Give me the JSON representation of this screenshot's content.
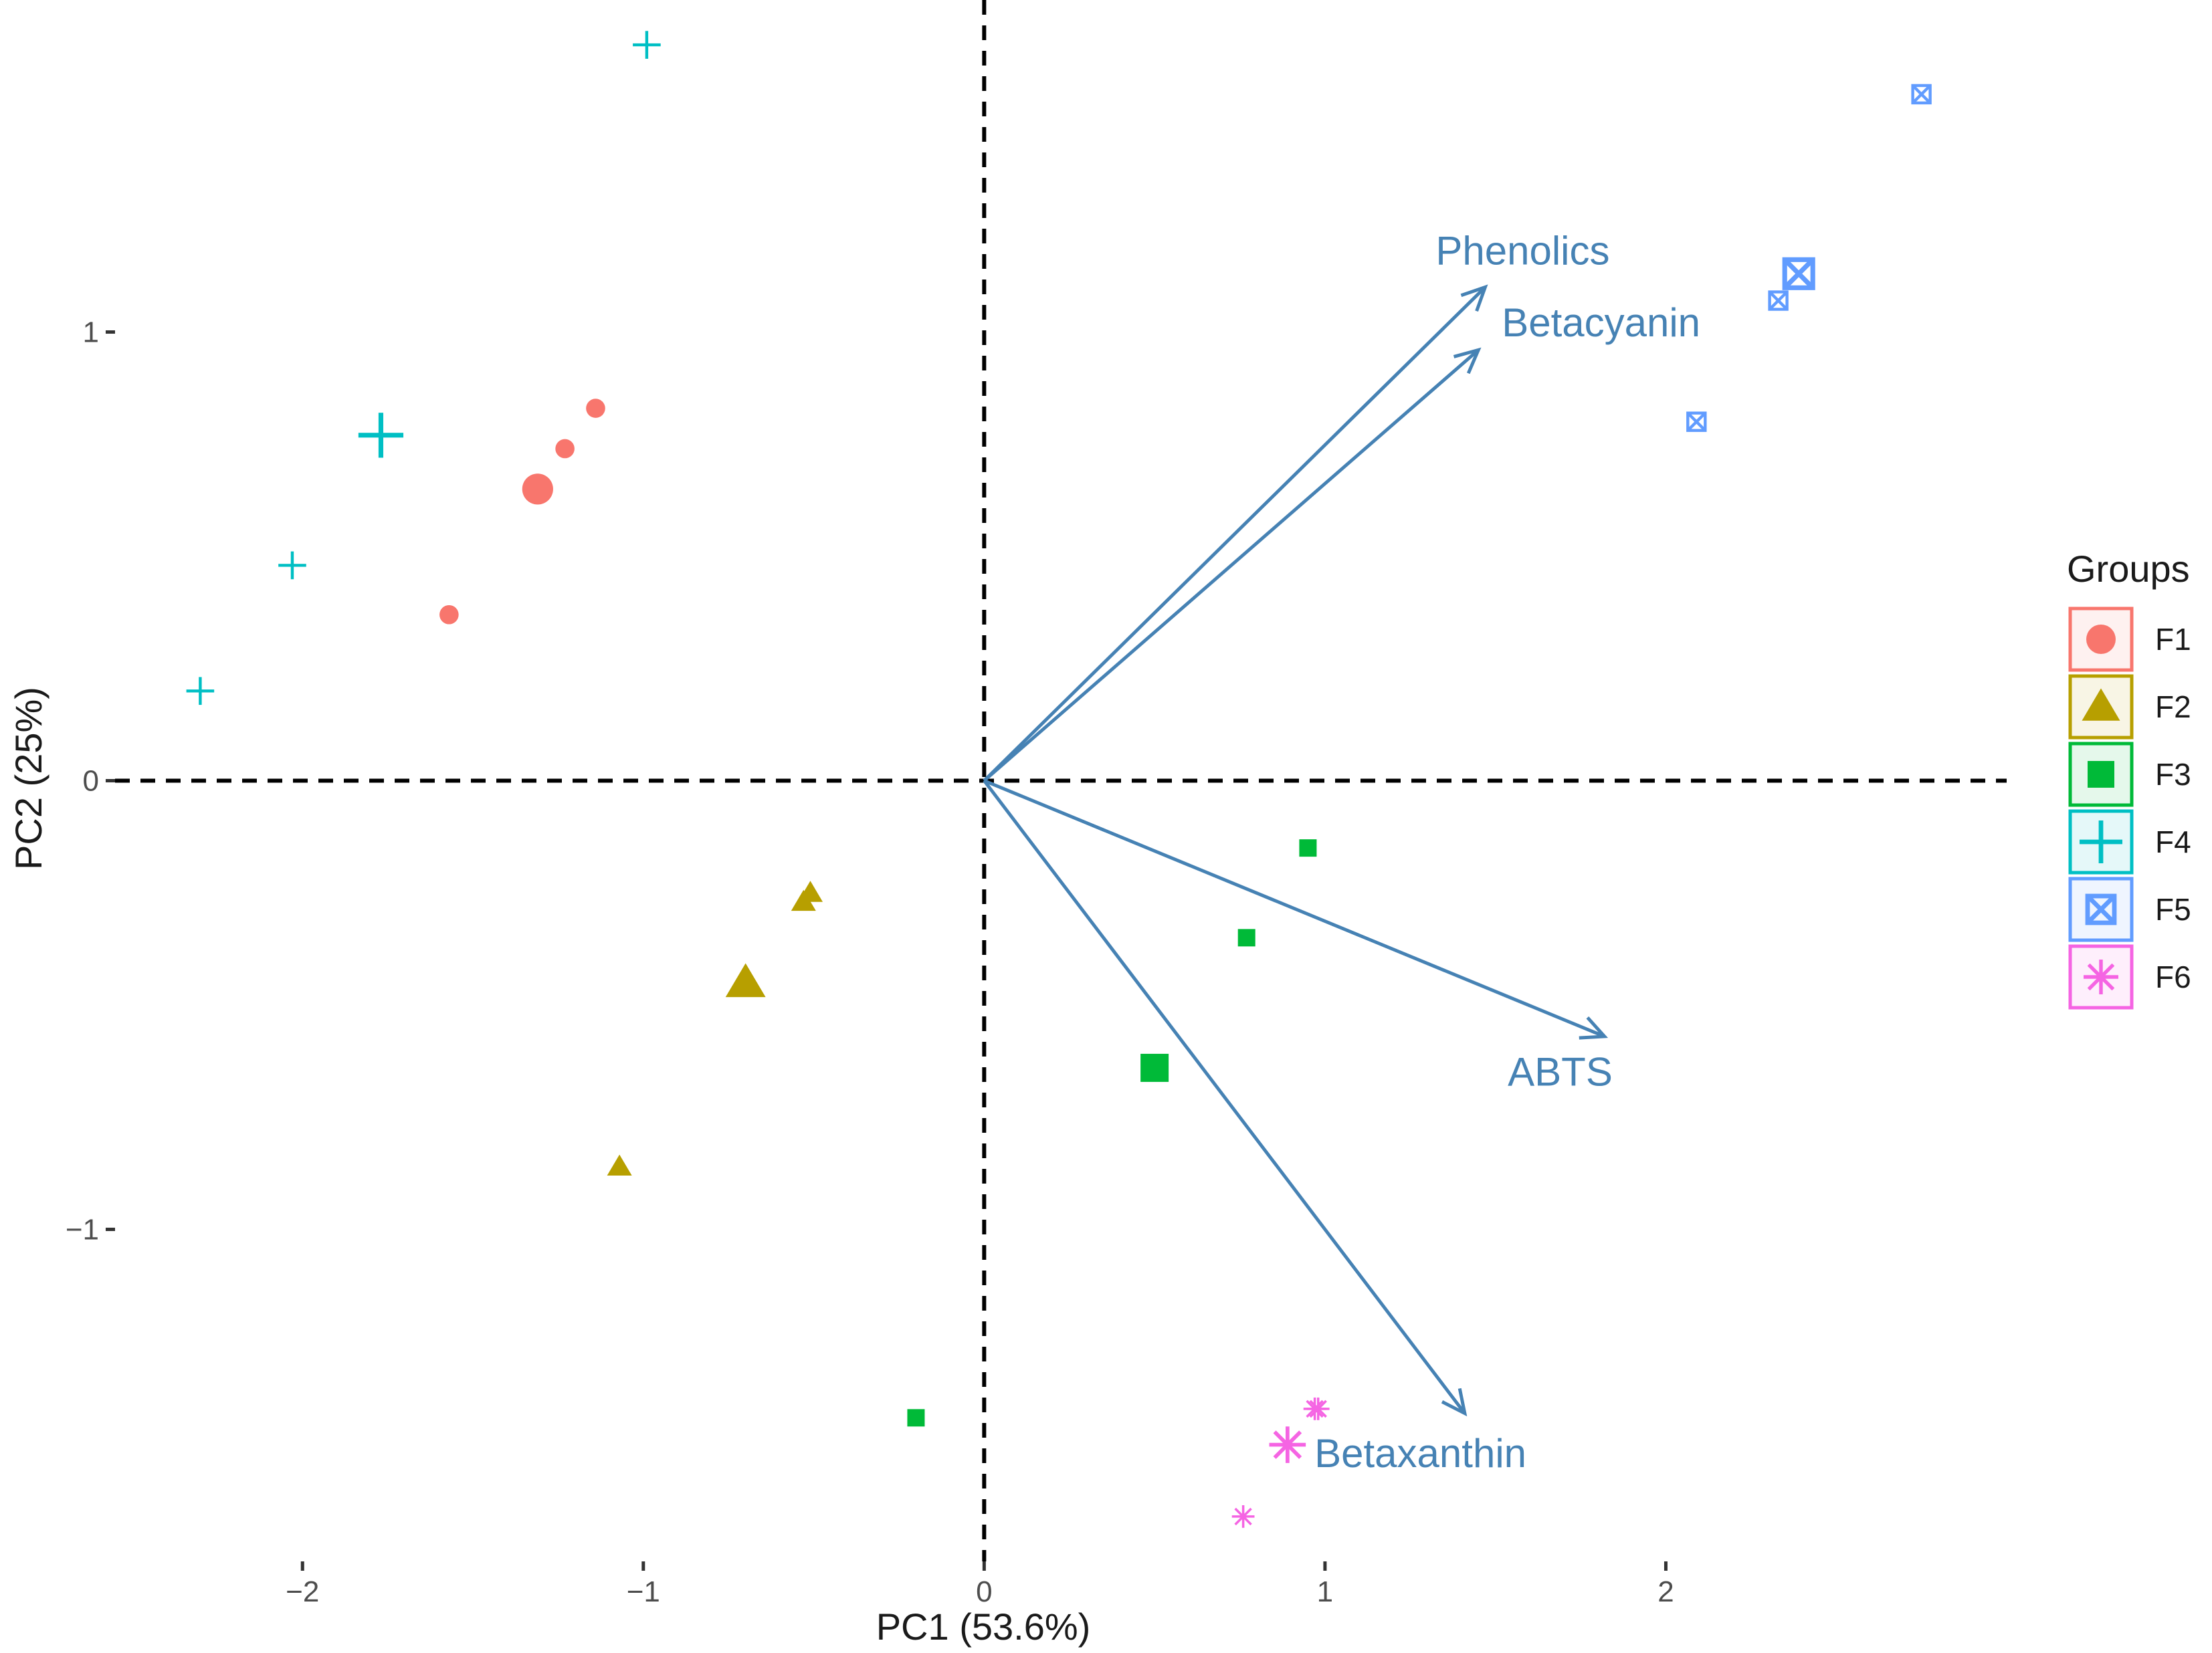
{
  "chart_data": {
    "type": "scatter",
    "title": "",
    "xlabel": "PC1 (53.6%)",
    "ylabel": "PC2 (25%)",
    "xlim": [
      -2.55,
      3.0
    ],
    "ylim": [
      -1.74,
      1.74
    ],
    "x_ticks": [
      -2,
      -1,
      0,
      1,
      2
    ],
    "x_tick_labels": [
      "−2",
      "−1",
      "0",
      "1",
      "2"
    ],
    "y_ticks": [
      -1,
      0,
      1
    ],
    "y_tick_labels": [
      "−1",
      "0",
      "1"
    ],
    "grid": false,
    "reference_lines": {
      "x": 0,
      "y": 0,
      "style": "dashed"
    },
    "legend": {
      "title": "Groups",
      "position": "right"
    },
    "series": [
      {
        "name": "F1",
        "color": "#F8766D",
        "shape": "circle",
        "points": [
          [
            -1.14,
            0.83
          ],
          [
            -1.23,
            0.74
          ],
          [
            -1.57,
            0.37
          ]
        ],
        "centroid": [
          -1.31,
          0.65
        ]
      },
      {
        "name": "F2",
        "color": "#B79F00",
        "shape": "triangle",
        "points": [
          [
            -0.51,
            -0.25
          ],
          [
            -0.53,
            -0.27
          ],
          [
            -1.07,
            -0.86
          ]
        ],
        "centroid": [
          -0.7,
          -0.45
        ]
      },
      {
        "name": "F3",
        "color": "#00BA38",
        "shape": "square",
        "points": [
          [
            0.95,
            -0.15
          ],
          [
            0.77,
            -0.35
          ],
          [
            -0.2,
            -1.42
          ]
        ],
        "centroid": [
          0.5,
          -0.64
        ]
      },
      {
        "name": "F4",
        "color": "#00BFC4",
        "shape": "plus",
        "points": [
          [
            -0.99,
            1.64
          ],
          [
            -2.03,
            0.48
          ],
          [
            -2.3,
            0.2
          ]
        ],
        "centroid": [
          -1.77,
          0.77
        ]
      },
      {
        "name": "F5",
        "color": "#619CFF",
        "shape": "square-x",
        "points": [
          [
            2.75,
            1.53
          ],
          [
            2.33,
            1.07
          ],
          [
            2.09,
            0.8
          ]
        ],
        "centroid": [
          2.39,
          1.13
        ]
      },
      {
        "name": "F6",
        "color": "#F564E3",
        "shape": "asterisk",
        "points": [
          [
            0.97,
            -1.4
          ],
          [
            0.98,
            -1.4
          ],
          [
            0.76,
            -1.64
          ]
        ],
        "centroid": [
          0.89,
          -1.48
        ]
      }
    ],
    "loadings": [
      {
        "name": "Phenolics",
        "x": 1.47,
        "y": 1.1,
        "label_x": 1.58,
        "label_y": 1.18
      },
      {
        "name": "Betacyanin",
        "x": 1.45,
        "y": 0.96,
        "label_x": 1.81,
        "label_y": 1.02
      },
      {
        "name": "ABTS",
        "x": 1.82,
        "y": -0.57,
        "label_x": 1.69,
        "label_y": -0.65
      },
      {
        "name": "Betaxanthin",
        "x": 1.41,
        "y": -1.41,
        "label_x": 1.28,
        "label_y": -1.5
      }
    ],
    "arrow_color": "#4682B4"
  }
}
